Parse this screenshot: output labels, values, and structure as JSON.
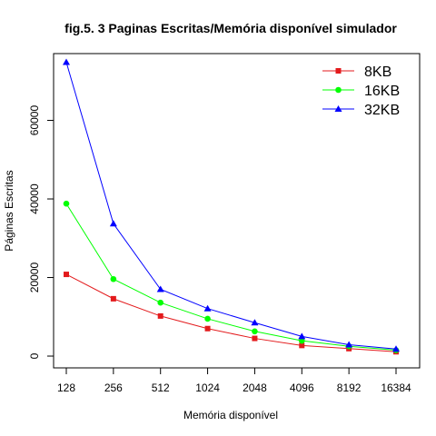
{
  "chart_data": {
    "type": "line",
    "title": "fig.5. 3 Paginas Escritas/Memória disponível  simulador",
    "xlabel": "Memória disponível",
    "ylabel": "Páginas Escritas",
    "categories": [
      "128",
      "256",
      "512",
      "1024",
      "2048",
      "4096",
      "8192",
      "16384"
    ],
    "yticks": [
      "0",
      "20000",
      "40000",
      "60000"
    ],
    "ylim": [
      -3000,
      77000
    ],
    "grid": false,
    "legend_position": "top-right",
    "series": [
      {
        "name": "8KB",
        "color": "#e31a1c",
        "marker": "square",
        "values": [
          20800,
          14600,
          10200,
          7000,
          4500,
          2700,
          1900,
          1100
        ]
      },
      {
        "name": "16KB",
        "color": "#00ff00",
        "marker": "circle",
        "values": [
          38800,
          19600,
          13600,
          9500,
          6300,
          3900,
          2500,
          1500
        ]
      },
      {
        "name": "32KB",
        "color": "#0000ff",
        "marker": "triangle",
        "values": [
          74800,
          33700,
          17000,
          12100,
          8500,
          5000,
          2900,
          1800
        ]
      }
    ]
  }
}
